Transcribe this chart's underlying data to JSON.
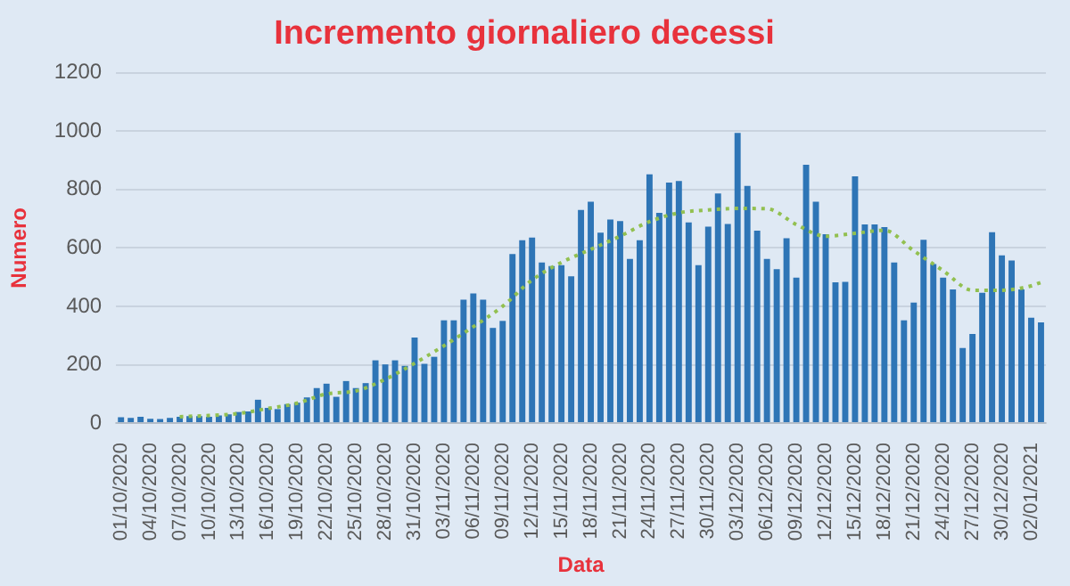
{
  "chart_data": {
    "type": "bar",
    "title": "Incremento giornaliero decessi",
    "xlabel": "Data",
    "ylabel": "Numero",
    "categories": [
      "01/10/2020",
      null,
      null,
      "04/10/2020",
      null,
      null,
      "07/10/2020",
      null,
      null,
      "10/10/2020",
      null,
      null,
      "13/10/2020",
      null,
      null,
      "16/10/2020",
      null,
      null,
      "19/10/2020",
      null,
      null,
      "22/10/2020",
      null,
      null,
      "25/10/2020",
      null,
      null,
      "28/10/2020",
      null,
      null,
      "31/10/2020",
      null,
      null,
      "03/11/2020",
      null,
      null,
      "06/11/2020",
      null,
      null,
      "09/11/2020",
      null,
      null,
      "12/11/2020",
      null,
      null,
      "15/11/2020",
      null,
      null,
      "18/11/2020",
      null,
      null,
      "21/11/2020",
      null,
      null,
      "24/11/2020",
      null,
      null,
      "27/11/2020",
      null,
      null,
      "30/11/2020",
      null,
      null,
      "03/12/2020",
      null,
      null,
      "06/12/2020",
      null,
      null,
      "09/12/2020",
      null,
      null,
      "12/12/2020",
      null,
      null,
      "15/12/2020",
      null,
      null,
      "18/12/2020",
      null,
      null,
      "21/12/2020",
      null,
      null,
      "24/12/2020",
      null,
      null,
      "27/12/2020",
      null,
      null,
      "30/12/2020",
      null,
      null,
      "02/01/2021",
      null
    ],
    "series": [
      {
        "color": "#2e75b6",
        "values": [
          20,
          18,
          22,
          15,
          14,
          18,
          22,
          24,
          24,
          22,
          26,
          30,
          38,
          40,
          80,
          52,
          48,
          65,
          70,
          88,
          120,
          135,
          90,
          144,
          120,
          137,
          215,
          201,
          215,
          196,
          293,
          203,
          227,
          352,
          352,
          423,
          444,
          423,
          326,
          350,
          579,
          626,
          635,
          550,
          538,
          541,
          503,
          730,
          758,
          652,
          697,
          692,
          562,
          626,
          852,
          720,
          824,
          829,
          687,
          541,
          673,
          786,
          682,
          994,
          812,
          659,
          562,
          527,
          633,
          498,
          885,
          758,
          647,
          482,
          484,
          845,
          680,
          680,
          671,
          550,
          352,
          413,
          628,
          545,
          498,
          458,
          257,
          305,
          446,
          654,
          574,
          557,
          458,
          361,
          345
        ]
      },
      {
        "type": "line",
        "color": "#92c050",
        "line_style": "dotted",
        "marker": "none",
        "values": [
          null,
          null,
          null,
          null,
          null,
          null,
          22,
          null,
          null,
          26,
          null,
          null,
          33,
          null,
          null,
          50,
          null,
          null,
          68,
          null,
          null,
          100,
          null,
          null,
          110,
          null,
          null,
          150,
          null,
          null,
          205,
          null,
          null,
          265,
          null,
          null,
          330,
          null,
          null,
          400,
          null,
          null,
          490,
          null,
          null,
          550,
          null,
          null,
          595,
          null,
          null,
          640,
          null,
          null,
          690,
          null,
          null,
          720,
          null,
          null,
          730,
          null,
          null,
          735,
          null,
          null,
          734,
          null,
          null,
          680,
          null,
          null,
          640,
          null,
          null,
          650,
          null,
          null,
          660,
          null,
          null,
          590,
          null,
          null,
          522,
          null,
          null,
          455,
          null,
          null,
          455,
          null,
          null,
          470,
          482
        ]
      }
    ],
    "ylim": [
      0,
      1200
    ],
    "yticks": [
      0,
      200,
      400,
      600,
      800,
      1000,
      1200
    ],
    "grid": "y",
    "legend": false
  }
}
